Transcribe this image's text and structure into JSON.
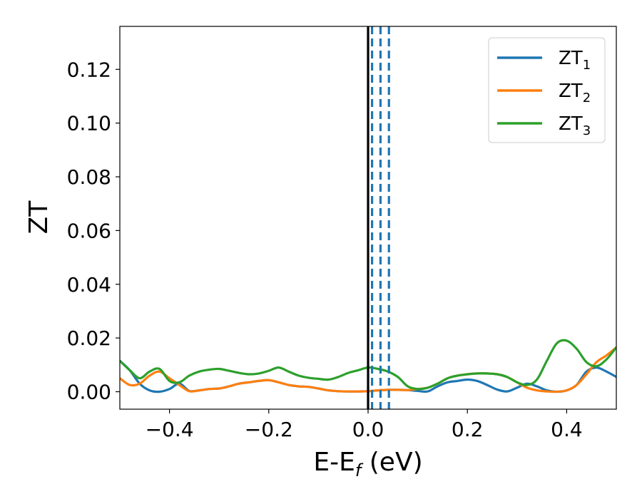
{
  "chart_data": {
    "type": "line",
    "xlabel": {
      "main": "E-E",
      "sub": "f",
      "suffix": " (eV)"
    },
    "ylabel": "ZT",
    "xlim": [
      -0.5,
      0.5
    ],
    "ylim": [
      -0.0065,
      0.136
    ],
    "xticks": [
      -0.4,
      -0.2,
      0.0,
      0.2,
      0.4
    ],
    "xtick_labels": [
      "−0.4",
      "−0.2",
      "0.0",
      "0.2",
      "0.4"
    ],
    "yticks": [
      0.0,
      0.02,
      0.04,
      0.06,
      0.08,
      0.1,
      0.12
    ],
    "ytick_labels": [
      "0.00",
      "0.02",
      "0.04",
      "0.06",
      "0.08",
      "0.10",
      "0.12"
    ],
    "grid": false,
    "legend_position": "top-right",
    "fermi_line": {
      "x": 0.0,
      "color": "#000000"
    },
    "dashed_lines": {
      "x": [
        0.008,
        0.025,
        0.042
      ],
      "color": "#1f77b4"
    },
    "series": [
      {
        "name": "ZT",
        "sub": "1",
        "color": "#1f77b4",
        "x": [
          -0.5,
          -0.48,
          -0.46,
          -0.44,
          -0.42,
          -0.4,
          -0.38,
          -0.36,
          -0.34,
          -0.32,
          -0.3,
          -0.28,
          -0.26,
          -0.24,
          -0.22,
          -0.2,
          -0.18,
          -0.16,
          -0.14,
          -0.12,
          -0.1,
          -0.08,
          -0.06,
          -0.04,
          -0.02,
          0.0,
          0.02,
          0.04,
          0.06,
          0.08,
          0.1,
          0.12,
          0.14,
          0.16,
          0.18,
          0.2,
          0.22,
          0.24,
          0.26,
          0.28,
          0.3,
          0.32,
          0.34,
          0.36,
          0.38,
          0.4,
          0.42,
          0.44,
          0.46,
          0.48,
          0.5
        ],
        "values": [
          0.0115,
          0.008,
          0.003,
          0.0005,
          0.0,
          0.001,
          0.003,
          0.0003,
          0.0005,
          0.001,
          0.0012,
          0.002,
          0.003,
          0.0035,
          0.004,
          0.0043,
          0.0035,
          0.0025,
          0.002,
          0.0018,
          0.0012,
          0.0005,
          0.0002,
          0.0001,
          0.0001,
          0.0002,
          0.0005,
          0.0007,
          0.0007,
          0.0006,
          0.0003,
          0.0001,
          0.002,
          0.0035,
          0.004,
          0.0045,
          0.004,
          0.0025,
          0.0008,
          0.0001,
          0.0015,
          0.003,
          0.002,
          0.0005,
          0.0,
          0.0005,
          0.0025,
          0.0075,
          0.009,
          0.0075,
          0.0055
        ]
      },
      {
        "name": "ZT",
        "sub": "2",
        "color": "#ff7f0e",
        "x": [
          -0.5,
          -0.48,
          -0.46,
          -0.44,
          -0.42,
          -0.4,
          -0.38,
          -0.36,
          -0.34,
          -0.32,
          -0.3,
          -0.28,
          -0.26,
          -0.24,
          -0.22,
          -0.2,
          -0.18,
          -0.16,
          -0.14,
          -0.12,
          -0.1,
          -0.08,
          -0.06,
          -0.04,
          -0.02,
          0.0,
          0.02,
          0.04,
          0.06,
          0.08,
          0.1,
          0.12,
          0.14,
          0.16,
          0.18,
          0.2,
          0.22,
          0.24,
          0.26,
          0.28,
          0.3,
          0.32,
          0.34,
          0.36,
          0.38,
          0.4,
          0.42,
          0.44,
          0.46,
          0.48,
          0.5
        ],
        "values": [
          0.005,
          0.0025,
          0.003,
          0.006,
          0.0075,
          0.005,
          0.0025,
          0.0002,
          0.0005,
          0.001,
          0.0012,
          0.002,
          0.003,
          0.0035,
          0.004,
          0.0043,
          0.0035,
          0.0025,
          0.002,
          0.0018,
          0.0012,
          0.0005,
          0.0002,
          0.0001,
          0.0001,
          0.0002,
          0.0005,
          0.0007,
          0.0007,
          0.0006,
          0.001,
          0.0015,
          0.003,
          0.005,
          0.006,
          0.0065,
          0.0068,
          0.0068,
          0.0065,
          0.0055,
          0.0035,
          0.0015,
          0.0005,
          0.0001,
          0.0,
          0.0005,
          0.0025,
          0.0065,
          0.011,
          0.0135,
          0.0165
        ]
      },
      {
        "name": "ZT",
        "sub": "3",
        "color": "#2ca02c",
        "x": [
          -0.5,
          -0.48,
          -0.46,
          -0.44,
          -0.42,
          -0.4,
          -0.38,
          -0.36,
          -0.34,
          -0.32,
          -0.3,
          -0.28,
          -0.26,
          -0.24,
          -0.22,
          -0.2,
          -0.18,
          -0.16,
          -0.14,
          -0.12,
          -0.1,
          -0.08,
          -0.06,
          -0.04,
          -0.02,
          0.0,
          0.02,
          0.04,
          0.06,
          0.08,
          0.1,
          0.12,
          0.14,
          0.16,
          0.18,
          0.2,
          0.22,
          0.24,
          0.26,
          0.28,
          0.3,
          0.32,
          0.34,
          0.36,
          0.38,
          0.4,
          0.42,
          0.44,
          0.46,
          0.48,
          0.5
        ],
        "values": [
          0.0115,
          0.008,
          0.005,
          0.0075,
          0.0085,
          0.004,
          0.0035,
          0.006,
          0.0075,
          0.0082,
          0.0085,
          0.0078,
          0.007,
          0.0065,
          0.0068,
          0.0078,
          0.009,
          0.0075,
          0.006,
          0.0052,
          0.0048,
          0.0045,
          0.0055,
          0.007,
          0.008,
          0.009,
          0.0085,
          0.0075,
          0.0055,
          0.002,
          0.001,
          0.0015,
          0.003,
          0.005,
          0.006,
          0.0065,
          0.0068,
          0.0068,
          0.0065,
          0.0055,
          0.0035,
          0.0025,
          0.0045,
          0.0115,
          0.018,
          0.019,
          0.016,
          0.011,
          0.0095,
          0.012,
          0.0165
        ]
      }
    ]
  }
}
